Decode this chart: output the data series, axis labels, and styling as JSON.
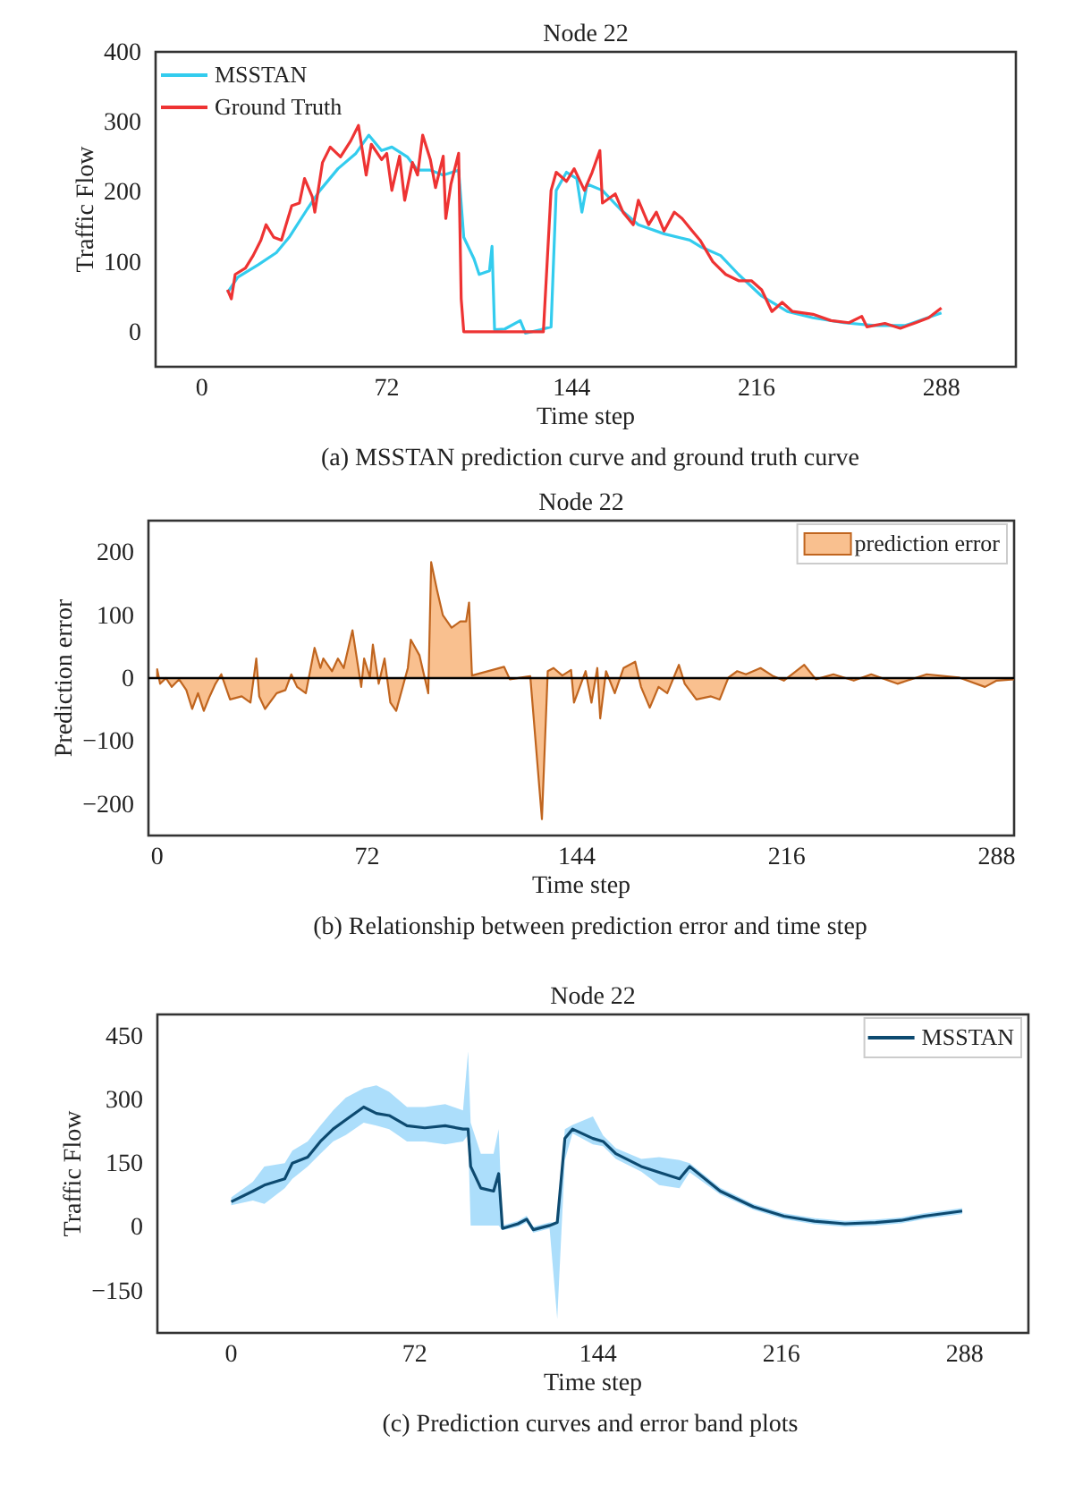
{
  "chart_data": [
    {
      "type": "line",
      "title": "Node 22",
      "xlabel": "Time step",
      "ylabel": "Traffic Flow",
      "xlim": [
        -18,
        317
      ],
      "ylim": [
        -50,
        400
      ],
      "xticks": [
        0,
        72,
        144,
        216,
        288
      ],
      "yticks": [
        0,
        100,
        200,
        300,
        400
      ],
      "legend": "top left",
      "series": [
        {
          "name": "MSSTAN",
          "color": "#33ccee",
          "x": [
            10,
            14,
            22,
            29,
            34,
            41,
            46,
            53,
            60,
            65,
            70,
            74,
            80,
            84,
            89,
            94,
            100,
            102,
            106,
            108,
            112,
            113,
            114,
            118,
            124,
            126,
            132,
            136,
            138,
            142,
            146,
            148,
            150,
            156,
            163,
            170,
            180,
            190,
            194,
            202,
            209,
            218,
            228,
            238,
            250,
            262,
            274,
            288
          ],
          "values": [
            56,
            78,
            96,
            113,
            135,
            175,
            202,
            233,
            255,
            281,
            259,
            264,
            250,
            231,
            231,
            224,
            231,
            135,
            104,
            82,
            87,
            122,
            3,
            4,
            16,
            -2,
            3,
            7,
            202,
            228,
            219,
            171,
            211,
            202,
            175,
            153,
            140,
            131,
            122,
            109,
            82,
            51,
            29,
            20,
            13,
            9,
            9,
            27
          ]
        },
        {
          "name": "Ground Truth",
          "color": "#ee3333",
          "x": [
            10,
            11.5,
            13,
            17,
            20,
            23,
            25,
            28,
            31,
            35,
            38,
            40,
            43,
            44,
            47,
            50,
            54,
            58,
            61,
            64,
            66,
            70,
            72,
            74,
            77,
            79,
            82,
            84,
            86,
            89,
            91,
            94,
            95,
            97,
            100,
            101,
            102,
            118,
            133,
            136,
            138,
            142,
            145,
            149,
            152,
            155,
            156,
            161,
            164,
            168,
            170,
            174,
            177,
            180,
            184,
            187,
            191,
            194,
            199,
            204,
            209,
            214,
            218,
            222,
            226,
            230,
            238,
            245,
            252,
            257,
            259,
            266,
            272,
            278,
            283,
            288
          ],
          "values": [
            60,
            47,
            82,
            91,
            109,
            131,
            153,
            135,
            131,
            180,
            184,
            219,
            193,
            171,
            242,
            264,
            250,
            273,
            295,
            224,
            268,
            246,
            255,
            202,
            251,
            188,
            242,
            224,
            281,
            246,
            206,
            251,
            162,
            211,
            255,
            47,
            0,
            0,
            0,
            202,
            228,
            215,
            233,
            202,
            228,
            259,
            184,
            197,
            171,
            153,
            188,
            153,
            171,
            144,
            171,
            162,
            144,
            131,
            100,
            82,
            73,
            73,
            60,
            29,
            42,
            29,
            25,
            16,
            13,
            22,
            7,
            12,
            5,
            13,
            20,
            34
          ]
        }
      ],
      "annotations": [
        "(a) MSSTAN prediction curve and ground truth  curve"
      ]
    },
    {
      "type": "area",
      "title": "Node 22",
      "xlabel": "Time step",
      "ylabel": "Prediction error",
      "xlim": [
        -3,
        294
      ],
      "ylim": [
        -250,
        250
      ],
      "xticks": [
        0,
        72,
        144,
        216,
        288
      ],
      "yticks": [
        -200,
        -100,
        0,
        100,
        200
      ],
      "legend": "top right",
      "ref_lines": [
        {
          "axis": "y",
          "value": 0,
          "color": "#000000"
        }
      ],
      "x": [
        0,
        1,
        3,
        5,
        7.5,
        10,
        12,
        14,
        16,
        18,
        20,
        22,
        25,
        29,
        32,
        34,
        35,
        37,
        41,
        44,
        46,
        48,
        51,
        54,
        56,
        57,
        60,
        62,
        64,
        67,
        70,
        71,
        73,
        74,
        76,
        78,
        80,
        82,
        86,
        87,
        90,
        93,
        94,
        96,
        98,
        101,
        104,
        106,
        107,
        108,
        119,
        121,
        128,
        132,
        134,
        136,
        139,
        142,
        143,
        147,
        149,
        151,
        152,
        154,
        157,
        160,
        164,
        166,
        169,
        172,
        175,
        179,
        181,
        185,
        190,
        193,
        196,
        199,
        202,
        207,
        211,
        215,
        222,
        226,
        232,
        239,
        245,
        254,
        264,
        275,
        284,
        288,
        294
      ],
      "series": [
        {
          "name": "prediction error",
          "color": "#c0651f",
          "values": [
            14,
            -9,
            0,
            -14,
            -2,
            -19,
            -49,
            -24,
            -52,
            -29,
            -9,
            6,
            -34,
            -29,
            -39,
            31,
            -29,
            -49,
            -24,
            -19,
            6,
            -14,
            -24,
            48,
            16,
            31,
            11,
            31,
            16,
            76,
            -14,
            31,
            1,
            53,
            -9,
            31,
            -39,
            -52,
            16,
            61,
            36,
            -24,
            184,
            140,
            100,
            80,
            90,
            90,
            120,
            4,
            18,
            -2,
            3,
            -224,
            11,
            16,
            4,
            13,
            -39,
            11,
            -39,
            16,
            -64,
            11,
            -24,
            16,
            26,
            -14,
            -47,
            -14,
            -24,
            21,
            -9,
            -34,
            -29,
            -34,
            1,
            11,
            6,
            16,
            4,
            -4,
            21,
            -2,
            6,
            -4,
            6,
            -9,
            6,
            1,
            -14,
            -4,
            -2
          ]
        }
      ],
      "annotations": [
        "(b) Relationship between prediction error and time step"
      ]
    },
    {
      "type": "line",
      "title": "Node 22",
      "xlabel": "Time step",
      "ylabel": "Traffic Flow",
      "xlim": [
        -29,
        313
      ],
      "ylim": [
        -250,
        500
      ],
      "xticks": [
        0,
        72,
        144,
        216,
        288
      ],
      "yticks": [
        -150,
        0,
        150,
        300,
        450
      ],
      "legend": "top right",
      "x": [
        0,
        8.5,
        13,
        21,
        24,
        30,
        35,
        40,
        45,
        52,
        57,
        62,
        69,
        76,
        84,
        91,
        93,
        94,
        98,
        103,
        105,
        106.5,
        112.6,
        116,
        118.6,
        125,
        128,
        131,
        134,
        142,
        146,
        151,
        161,
        168,
        176,
        180,
        192,
        205,
        217,
        229,
        241,
        253,
        263,
        272,
        287
      ],
      "series": [
        {
          "name": "MSSTAN",
          "color": "#0d4a70",
          "values": [
            59,
            84,
            98,
            113,
            150,
            164,
            201,
            230,
            252,
            282,
            267,
            262,
            238,
            233,
            238,
            230,
            230,
            142,
            91,
            84,
            125,
            -4,
            7,
            18,
            -7,
            3,
            10,
            208,
            230,
            208,
            201,
            172,
            142,
            128,
            113,
            142,
            84,
            47,
            25,
            13,
            7,
            10,
            15,
            25,
            37
          ],
          "lower": [
            51,
            62,
            54,
            91,
            113,
            142,
            172,
            201,
            216,
            245,
            238,
            230,
            201,
            201,
            194,
            201,
            216,
            3,
            3,
            3,
            3,
            -8,
            0,
            10,
            -14,
            -4,
            -217,
            157,
            220,
            194,
            190,
            160,
            130,
            98,
            91,
            128,
            76,
            40,
            18,
            6,
            0,
            3,
            8,
            18,
            30
          ],
          "upper": [
            69,
            106,
            142,
            150,
            179,
            201,
            238,
            274,
            304,
            326,
            333,
            318,
            282,
            282,
            289,
            274,
            413,
            245,
            172,
            172,
            230,
            3,
            14,
            26,
            0,
            10,
            10,
            230,
            240,
            260,
            215,
            185,
            160,
            164,
            157,
            150,
            92,
            54,
            32,
            20,
            14,
            17,
            22,
            32,
            44
          ]
        }
      ],
      "annotations": [
        "(c) Prediction curves and error band plots"
      ]
    }
  ]
}
